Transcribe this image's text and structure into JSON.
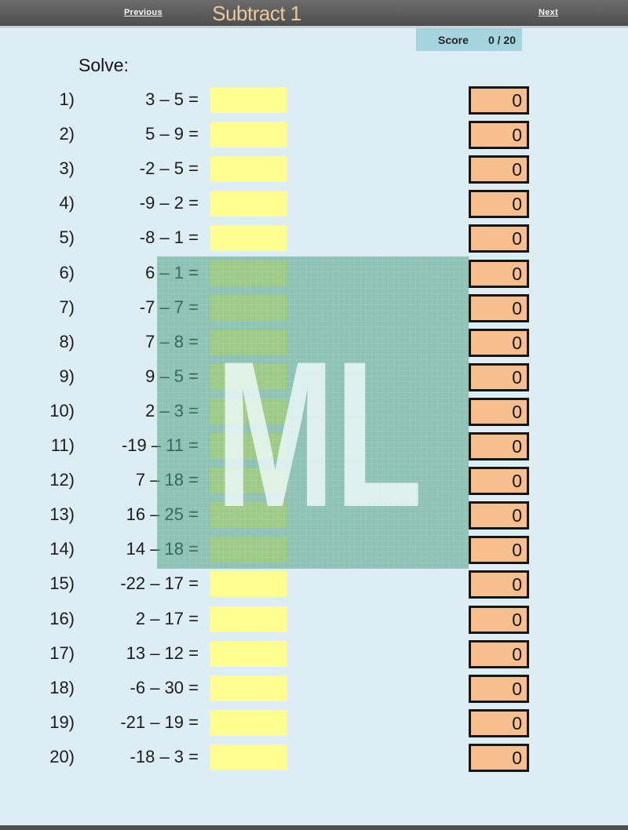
{
  "header": {
    "previous_label": "Previous",
    "title": "Subtract 1",
    "next_label": "Next"
  },
  "score": {
    "label": "Score",
    "value": "0 / 20"
  },
  "solve_label": "Solve:",
  "problems": [
    {
      "num": "1)",
      "expression": "3 – 5 =",
      "answer_value": "",
      "result": "0"
    },
    {
      "num": "2)",
      "expression": "5 – 9 =",
      "answer_value": "",
      "result": "0"
    },
    {
      "num": "3)",
      "expression": "-2 – 5 =",
      "answer_value": "",
      "result": "0"
    },
    {
      "num": "4)",
      "expression": "-9 – 2 =",
      "answer_value": "",
      "result": "0"
    },
    {
      "num": "5)",
      "expression": "-8 – 1 =",
      "answer_value": "",
      "result": "0"
    },
    {
      "num": "6)",
      "expression": "6 – 1 =",
      "answer_value": "",
      "result": "0"
    },
    {
      "num": "7)",
      "expression": "-7 – 7 =",
      "answer_value": "",
      "result": "0"
    },
    {
      "num": "8)",
      "expression": "7 – 8 =",
      "answer_value": "",
      "result": "0"
    },
    {
      "num": "9)",
      "expression": "9 – 5 =",
      "answer_value": "",
      "result": "0"
    },
    {
      "num": "10)",
      "expression": "2 – 3 =",
      "answer_value": "",
      "result": "0"
    },
    {
      "num": "11)",
      "expression": "-19 – 11 =",
      "answer_value": "",
      "result": "0"
    },
    {
      "num": "12)",
      "expression": "7 – 18 =",
      "answer_value": "",
      "result": "0"
    },
    {
      "num": "13)",
      "expression": "16 – 25 =",
      "answer_value": "",
      "result": "0"
    },
    {
      "num": "14)",
      "expression": "14 – 18 =",
      "answer_value": "",
      "result": "0"
    },
    {
      "num": "15)",
      "expression": "-22 – 17 =",
      "answer_value": "",
      "result": "0"
    },
    {
      "num": "16)",
      "expression": "2 – 17 =",
      "answer_value": "",
      "result": "0"
    },
    {
      "num": "17)",
      "expression": "13 – 12 =",
      "answer_value": "",
      "result": "0"
    },
    {
      "num": "18)",
      "expression": "-6 – 30 =",
      "answer_value": "",
      "result": "0"
    },
    {
      "num": "19)",
      "expression": "-21 – 19 =",
      "answer_value": "",
      "result": "0"
    },
    {
      "num": "20)",
      "expression": "-18 – 3 =",
      "answer_value": "",
      "result": "0"
    }
  ],
  "watermark": {
    "text": "ML"
  },
  "colors": {
    "page_bg": "#dcedf3",
    "header_bg": "#585858",
    "title_text": "#eac9a0",
    "score_bg": "#a6d4de",
    "answer_box": "#ffff8f",
    "result_box_fill": "#f6bf8d",
    "result_box_border": "#151515",
    "watermark_teal": "#4f9e81",
    "watermark_letters": "#f0fafd",
    "footer_bg": "#4f4f4f"
  }
}
